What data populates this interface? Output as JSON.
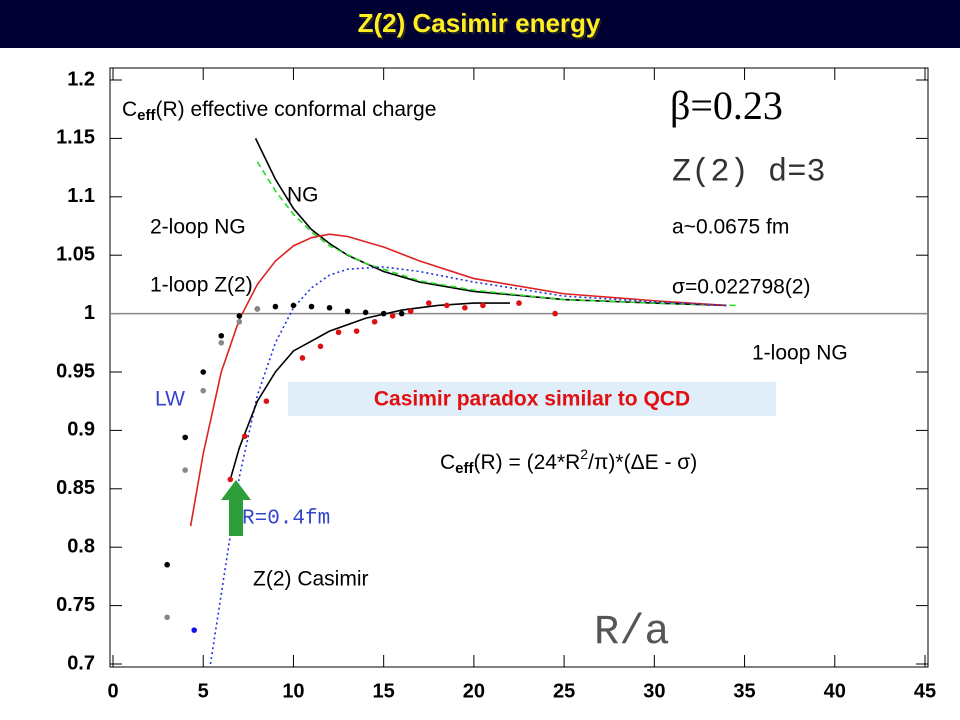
{
  "chart_data": {
    "type": "line",
    "title": "Z(2) Casimir energy",
    "xlim": [
      0,
      45
    ],
    "ylim": [
      0.7,
      1.2
    ],
    "xticks": [
      0,
      5,
      10,
      15,
      20,
      25,
      30,
      35,
      40,
      45
    ],
    "yticks": [
      0.7,
      0.75,
      0.8,
      0.85,
      0.9,
      0.95,
      1,
      1.05,
      1.1,
      1.15,
      1.2
    ],
    "hline": 1,
    "series": [
      {
        "mode": "line",
        "color": "#000000",
        "dash": "none",
        "x": [
          7.9,
          9,
          10,
          11,
          12,
          13,
          15,
          17,
          20,
          25,
          30,
          34
        ],
        "values": [
          1.15,
          1.115,
          1.09,
          1.072,
          1.06,
          1.05,
          1.036,
          1.027,
          1.019,
          1.012,
          1.009,
          1.007
        ]
      },
      {
        "mode": "line",
        "color": "#22dd22",
        "dash": "6 4",
        "x": [
          8,
          9,
          10,
          11,
          12,
          14,
          17,
          20,
          25,
          30,
          34.5
        ],
        "values": [
          1.13,
          1.105,
          1.085,
          1.07,
          1.058,
          1.043,
          1.028,
          1.02,
          1.012,
          1.009,
          1.007
        ]
      },
      {
        "mode": "line",
        "color": "#dd2222",
        "dash": "none",
        "x": [
          4.3,
          5,
          6,
          7,
          8,
          9,
          10,
          11,
          12,
          13,
          15,
          17,
          20,
          25,
          30,
          34
        ],
        "values": [
          0.818,
          0.88,
          0.95,
          0.995,
          1.025,
          1.045,
          1.058,
          1.065,
          1.068,
          1.066,
          1.057,
          1.045,
          1.03,
          1.017,
          1.011,
          1.007
        ]
      },
      {
        "mode": "line",
        "color": "#2233dd",
        "dash": "2 3",
        "x": [
          5.4,
          6,
          7,
          8,
          9,
          10,
          11,
          12,
          13,
          15,
          17,
          20,
          25,
          30,
          34
        ],
        "values": [
          0.7,
          0.76,
          0.86,
          0.93,
          0.975,
          1.005,
          1.022,
          1.033,
          1.038,
          1.04,
          1.036,
          1.027,
          1.015,
          1.01,
          1.007
        ]
      },
      {
        "mode": "line",
        "color": "#000000",
        "dash": "none",
        "x": [
          6.5,
          7,
          8,
          9,
          10,
          12,
          14,
          16,
          18,
          20,
          22
        ],
        "values": [
          0.858,
          0.885,
          0.925,
          0.95,
          0.968,
          0.985,
          0.996,
          1.003,
          1.007,
          1.009,
          1.009
        ]
      },
      {
        "mode": "markers",
        "color": "#dd1111",
        "x": [
          6.5,
          7.3,
          8.5,
          10.5,
          11.5,
          12.5,
          13.5,
          14.5,
          15.5,
          16.5,
          17.5,
          18.5,
          19.5,
          20.5,
          22.5,
          24.5
        ],
        "values": [
          0.858,
          0.895,
          0.925,
          0.962,
          0.972,
          0.984,
          0.985,
          0.993,
          0.998,
          1.002,
          1.009,
          1.007,
          1.005,
          1.007,
          1.009,
          1.0
        ]
      },
      {
        "mode": "markers",
        "color": "#000000",
        "x": [
          3,
          4,
          5,
          6,
          7,
          8,
          9,
          10,
          11,
          12,
          13,
          14,
          15,
          16
        ],
        "values": [
          0.785,
          0.894,
          0.95,
          0.981,
          0.998,
          1.004,
          1.006,
          1.007,
          1.006,
          1.005,
          1.002,
          1.001,
          1.0,
          1.0
        ]
      },
      {
        "mode": "markers",
        "color": "#888888",
        "x": [
          3,
          4,
          5,
          6,
          7,
          8
        ],
        "values": [
          0.74,
          0.866,
          0.934,
          0.975,
          0.993,
          1.004
        ]
      },
      {
        "mode": "markers",
        "color": "#1111ee",
        "x": [
          4.5
        ],
        "values": [
          0.729
        ]
      }
    ],
    "annotations": {
      "ceff_head": {
        "main": "C",
        "sub": "eff",
        "rest": "(R)  effective conformal charge"
      },
      "beta": "β=0.23",
      "model": "Z(2) d=3",
      "ng": "NG",
      "two_loop_ng": "2-loop NG",
      "spacing": "a~0.0675 fm",
      "one_loop_z2": "1-loop Z(2)",
      "sigma": "σ=0.022798(2)",
      "one_loop_ng": "1-loop NG",
      "lw": "LW",
      "paradox": "Casimir paradox similar to QCD",
      "formula": {
        "main": "C",
        "sub": "eff",
        "mid": "(R) = (24*R",
        "sup": "2",
        "rest": "/π)*(ΔE - σ)"
      },
      "r_mark": "R=0.4fm",
      "z2_casimir": "Z(2) Casimir",
      "xlabel": "R/a"
    }
  }
}
